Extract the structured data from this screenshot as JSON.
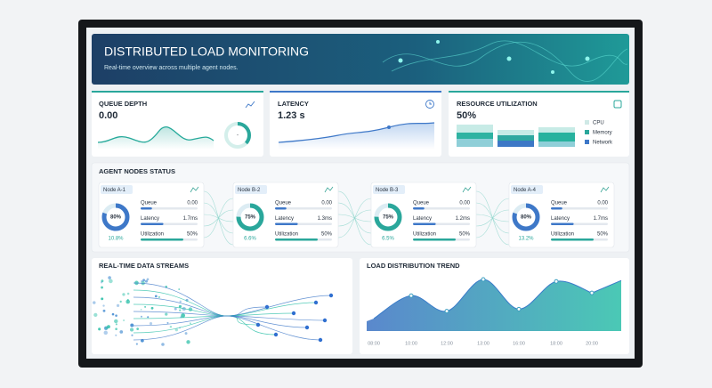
{
  "header": {
    "title": "DISTRIBUTED LOAD MONITORING",
    "subtitle": "Real-time overview across multiple agent nodes."
  },
  "cards": [
    {
      "title": "QUEUE DEPTH",
      "value": "0.00",
      "center": "-"
    },
    {
      "title": "LATENCY",
      "value": "1.23 s"
    },
    {
      "title": "RESOURCE UTILIZATION",
      "value": "50%",
      "legend": [
        "CPU",
        "Memory",
        "Network"
      ]
    }
  ],
  "nodes_panel": {
    "title": "AGENT NODES STATUS",
    "nodes": [
      {
        "name": "Node A-1",
        "load": 80,
        "load_label": "80%",
        "change": "10.8%",
        "rows": [
          {
            "label": "Queue",
            "value": "0.00"
          },
          {
            "label": "Latency",
            "value": "1.7ms"
          },
          {
            "label": "Utilization",
            "value": "50%"
          }
        ]
      },
      {
        "name": "Node B-2",
        "load": 75,
        "load_label": "75%",
        "change": "6.6%",
        "rows": [
          {
            "label": "Queue",
            "value": "0.00"
          },
          {
            "label": "Latency",
            "value": "1.3ms"
          },
          {
            "label": "Utilization",
            "value": "50%"
          }
        ]
      },
      {
        "name": "Node B-3",
        "load": 75,
        "load_label": "75%",
        "change": "6.5%",
        "rows": [
          {
            "label": "Queue",
            "value": "0.00"
          },
          {
            "label": "Latency",
            "value": "1.2ms"
          },
          {
            "label": "Utilization",
            "value": "50%"
          }
        ]
      },
      {
        "name": "Node A-4",
        "load": 80,
        "load_label": "80%",
        "change": "13.2%",
        "rows": [
          {
            "label": "Queue",
            "value": "0.00"
          },
          {
            "label": "Latency",
            "value": "1.7ms"
          },
          {
            "label": "Utilization",
            "value": "50%"
          }
        ]
      }
    ]
  },
  "streams": {
    "title": "REAL-TIME DATA STREAMS"
  },
  "trend": {
    "title": "LOAD DISTRIBUTION TREND",
    "x": [
      "08:00",
      "10:00",
      "12:00",
      "13:00",
      "16:00",
      "18:00",
      "20:00"
    ],
    "values": [
      19,
      53,
      30,
      77,
      33,
      74,
      57
    ]
  }
}
